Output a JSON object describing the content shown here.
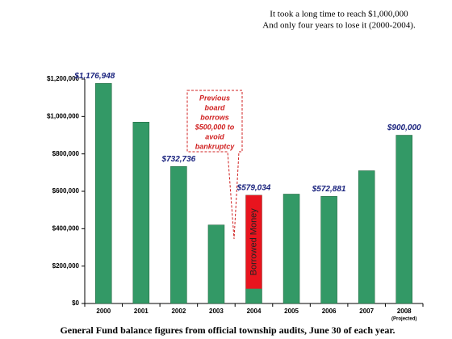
{
  "chart_data": {
    "type": "bar",
    "title_lines": [
      "It took a long time to reach $1,000,000",
      "And only four years to lose it (2000-2004)."
    ],
    "caption": "General Fund balance figures from official township audits, June 30 of each year.",
    "categories": [
      "2000",
      "2001",
      "2002",
      "2003",
      "2004",
      "2005",
      "2006",
      "2007",
      "2008"
    ],
    "values": [
      1176948,
      970000,
      732736,
      420000,
      579034,
      585000,
      572881,
      710000,
      900000
    ],
    "value_labels": [
      "$1,176,948",
      null,
      "$732,736",
      null,
      "$579,034",
      null,
      "$572,881",
      null,
      "$900,000"
    ],
    "color": "#339966",
    "borrowed": {
      "category": "2004",
      "value": 500000,
      "label": "Borrowed Money",
      "color": "#e8141e"
    },
    "callout_lines": [
      "Previous",
      "board",
      "borrows",
      "$500,000 to",
      "avoid",
      "bankruptcy"
    ],
    "category_notes": [
      {
        "category": "2008",
        "text": "(Projected)"
      }
    ],
    "ylim": [
      0,
      1200000
    ],
    "yticks": [
      {
        "value": 0,
        "label": "$0"
      },
      {
        "value": 200000,
        "label": "$200,000"
      },
      {
        "value": 400000,
        "label": "$400,000"
      },
      {
        "value": 600000,
        "label": "$600,000"
      },
      {
        "value": 800000,
        "label": "$800,000"
      },
      {
        "value": 1000000,
        "label": "$1,000,000"
      },
      {
        "value": 1200000,
        "label": "$1,200,000"
      }
    ],
    "grid": false
  }
}
